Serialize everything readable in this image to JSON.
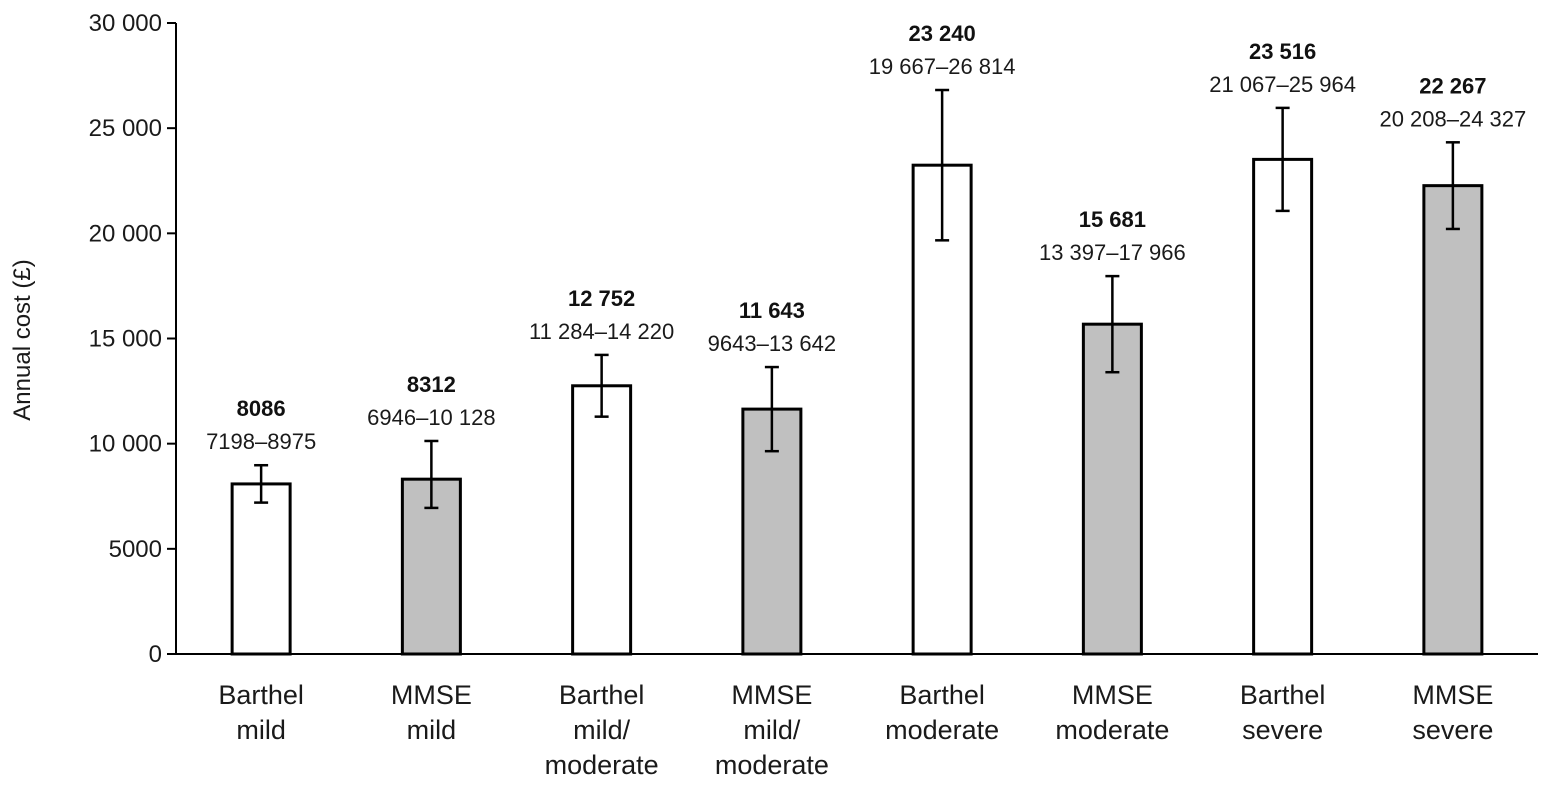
{
  "chart_data": {
    "type": "bar",
    "title": "",
    "ylabel": "Annual cost (£)",
    "xlabel": "",
    "ylim": [
      0,
      30000
    ],
    "yticks": [
      {
        "value": 0,
        "label": "0"
      },
      {
        "value": 5000,
        "label": "5000"
      },
      {
        "value": 10000,
        "label": "10 000"
      },
      {
        "value": 15000,
        "label": "15 000"
      },
      {
        "value": 20000,
        "label": "20 000"
      },
      {
        "value": 25000,
        "label": "25 000"
      },
      {
        "value": 30000,
        "label": "30 000"
      }
    ],
    "grid": false,
    "legend": "none",
    "colors": {
      "Barthel": "#ffffff",
      "MMSE": "#c0c0c0",
      "stroke": "#000000"
    },
    "bars": [
      {
        "category": [
          "Barthel",
          "mild"
        ],
        "group": "Barthel",
        "value": 8086,
        "value_label": "8086",
        "ci_low": 7198,
        "ci_high": 8975,
        "ci_label": "7198–8975"
      },
      {
        "category": [
          "MMSE",
          "mild"
        ],
        "group": "MMSE",
        "value": 8312,
        "value_label": "8312",
        "ci_low": 6946,
        "ci_high": 10128,
        "ci_label": "6946–10 128"
      },
      {
        "category": [
          "Barthel",
          "mild/",
          "moderate"
        ],
        "group": "Barthel",
        "value": 12752,
        "value_label": "12 752",
        "ci_low": 11284,
        "ci_high": 14220,
        "ci_label": "11 284–14 220"
      },
      {
        "category": [
          "MMSE",
          "mild/",
          "moderate"
        ],
        "group": "MMSE",
        "value": 11643,
        "value_label": "11 643",
        "ci_low": 9643,
        "ci_high": 13642,
        "ci_label": "9643–13 642"
      },
      {
        "category": [
          "Barthel",
          "moderate"
        ],
        "group": "Barthel",
        "value": 23240,
        "value_label": "23 240",
        "ci_low": 19667,
        "ci_high": 26814,
        "ci_label": "19 667–26 814"
      },
      {
        "category": [
          "MMSE",
          "moderate"
        ],
        "group": "MMSE",
        "value": 15681,
        "value_label": "15 681",
        "ci_low": 13397,
        "ci_high": 17966,
        "ci_label": "13 397–17 966"
      },
      {
        "category": [
          "Barthel",
          "severe"
        ],
        "group": "Barthel",
        "value": 23516,
        "value_label": "23 516",
        "ci_low": 21067,
        "ci_high": 25964,
        "ci_label": "21 067–25 964"
      },
      {
        "category": [
          "MMSE",
          "severe"
        ],
        "group": "MMSE",
        "value": 22267,
        "value_label": "22 267",
        "ci_low": 20208,
        "ci_high": 24327,
        "ci_label": "20 208–24 327"
      }
    ]
  }
}
